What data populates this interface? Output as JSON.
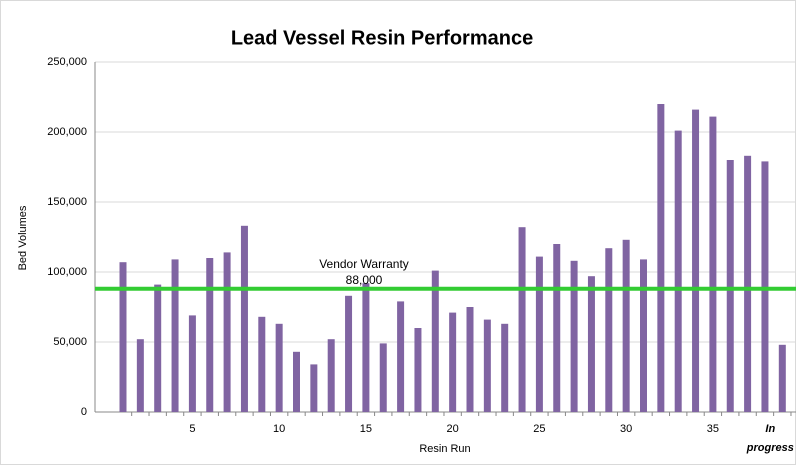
{
  "chart_data": {
    "type": "bar",
    "title": "Lead Vessel Resin Performance",
    "x_label": "Resin Run",
    "y_label": "Bed Volumes",
    "categories": [
      null,
      null,
      null,
      null,
      "5",
      null,
      null,
      null,
      null,
      "10",
      null,
      null,
      null,
      null,
      "15",
      null,
      null,
      null,
      null,
      "20",
      null,
      null,
      null,
      null,
      "25",
      null,
      null,
      null,
      null,
      "30",
      null,
      null,
      null,
      null,
      "35",
      null,
      null,
      null,
      "In progress"
    ],
    "values": [
      107000,
      52000,
      91000,
      109000,
      69000,
      110000,
      114000,
      133000,
      68000,
      63000,
      43000,
      34000,
      52000,
      83000,
      92000,
      49000,
      79000,
      60000,
      101000,
      71000,
      75000,
      66000,
      63000,
      132000,
      111000,
      120000,
      108000,
      97000,
      117000,
      123000,
      109000,
      220000,
      201000,
      216000,
      211000,
      180000,
      183000,
      179000,
      48000
    ],
    "color": "#8064a2",
    "ylim": [
      0,
      250000
    ],
    "yticks": [
      0,
      {
        "value": 50000,
        "label": "50,000"
      },
      {
        "value": 100000,
        "label": "100,000"
      },
      {
        "value": 150000,
        "label": "150,000"
      },
      {
        "value": 200000,
        "label": "200,000"
      },
      {
        "value": 250000,
        "label": "250,000"
      }
    ],
    "grid": true,
    "reference_line": {
      "label": "Vendor Warranty",
      "value": 88000,
      "value_label": "88,000",
      "color": "#33cc33"
    }
  }
}
